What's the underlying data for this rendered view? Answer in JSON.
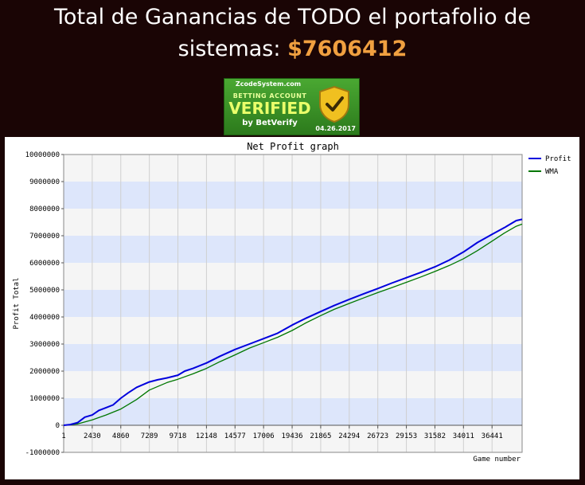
{
  "headline": {
    "text": "Total de Ganancias de TODO el portafolio de sistemas:",
    "amount": "$7606412"
  },
  "badge": {
    "site": "ZcodeSystem.com",
    "line1": "BETTING ACCOUNT",
    "line2": "VERIFIED",
    "line3": "by BetVerify",
    "date": "04.26.2017",
    "icon": "shield-check-icon",
    "colors": {
      "background": "#3a9428",
      "accent": "#eaff6a",
      "shield": "#f0c020"
    }
  },
  "chart_data": {
    "type": "line",
    "title": "Net Profit graph",
    "xlabel": "Game number",
    "ylabel": "Profit Total",
    "xlim": [
      1,
      39000
    ],
    "ylim": [
      -1000000,
      10000000
    ],
    "x_ticks": [
      "1",
      "2430",
      "4860",
      "7289",
      "9718",
      "12148",
      "14577",
      "17006",
      "19436",
      "21865",
      "24294",
      "26723",
      "29153",
      "31582",
      "34011",
      "36441"
    ],
    "y_ticks": [
      "-1000000",
      "0",
      "1000000",
      "2000000",
      "3000000",
      "4000000",
      "5000000",
      "6000000",
      "7000000",
      "8000000",
      "9000000",
      "10000000"
    ],
    "legend_position": "right",
    "grid": "horizontal bands",
    "series": [
      {
        "name": "Profit",
        "color": "#0000dd",
        "x": [
          1,
          500,
          1200,
          1800,
          2430,
          3000,
          3600,
          4200,
          4860,
          5500,
          6200,
          7289,
          8000,
          8800,
          9718,
          10300,
          11000,
          12148,
          13300,
          14577,
          15800,
          17006,
          18200,
          19436,
          20600,
          21865,
          23000,
          24294,
          25500,
          26723,
          27900,
          29153,
          30400,
          31582,
          32800,
          34011,
          35200,
          36441,
          37500,
          38500,
          39000
        ],
        "values": [
          0,
          20000,
          100000,
          300000,
          380000,
          550000,
          650000,
          750000,
          1000000,
          1200000,
          1400000,
          1600000,
          1680000,
          1750000,
          1850000,
          2000000,
          2100000,
          2300000,
          2550000,
          2800000,
          3000000,
          3200000,
          3400000,
          3700000,
          3950000,
          4200000,
          4420000,
          4650000,
          4850000,
          5050000,
          5250000,
          5450000,
          5650000,
          5850000,
          6100000,
          6400000,
          6750000,
          7050000,
          7300000,
          7560000,
          7606412
        ]
      },
      {
        "name": "WMA",
        "color": "#007700",
        "x": [
          1,
          1200,
          2430,
          3600,
          4860,
          6200,
          7289,
          8800,
          9718,
          11000,
          12148,
          13300,
          14577,
          15800,
          17006,
          18200,
          19436,
          20600,
          21865,
          23000,
          24294,
          25500,
          26723,
          27900,
          29153,
          30400,
          31582,
          32800,
          34011,
          35200,
          36441,
          37500,
          38500,
          39000
        ],
        "values": [
          0,
          50000,
          200000,
          380000,
          600000,
          950000,
          1300000,
          1580000,
          1700000,
          1900000,
          2100000,
          2350000,
          2600000,
          2850000,
          3050000,
          3250000,
          3500000,
          3780000,
          4050000,
          4280000,
          4500000,
          4700000,
          4900000,
          5080000,
          5280000,
          5480000,
          5680000,
          5900000,
          6150000,
          6450000,
          6800000,
          7100000,
          7350000,
          7430000
        ]
      }
    ]
  }
}
